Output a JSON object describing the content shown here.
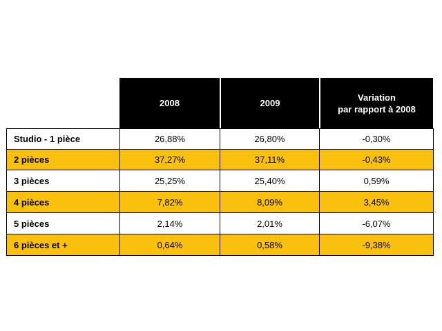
{
  "table": {
    "header": [
      [
        "2008"
      ],
      [
        "2009"
      ],
      [
        "Variation",
        "par rapport à 2008"
      ]
    ],
    "rows": [
      [
        "Studio - 1 pièce",
        "26,88%",
        "26,80%",
        "-0,30%"
      ],
      [
        "2 pièces",
        "37,27%",
        "37,11%",
        "-0,43%"
      ],
      [
        "3 pièces",
        "25,25%",
        "25,40%",
        "0,59%"
      ],
      [
        "4 pièces",
        "7,82%",
        "8,09%",
        "3,45%"
      ],
      [
        "5 pièces",
        "2,14%",
        "2,01%",
        "-6,07%"
      ],
      [
        "6 pièces et +",
        "0,64%",
        "0,58%",
        "-9,38%"
      ]
    ],
    "highlighted_rows": [
      1,
      3,
      5
    ]
  }
}
